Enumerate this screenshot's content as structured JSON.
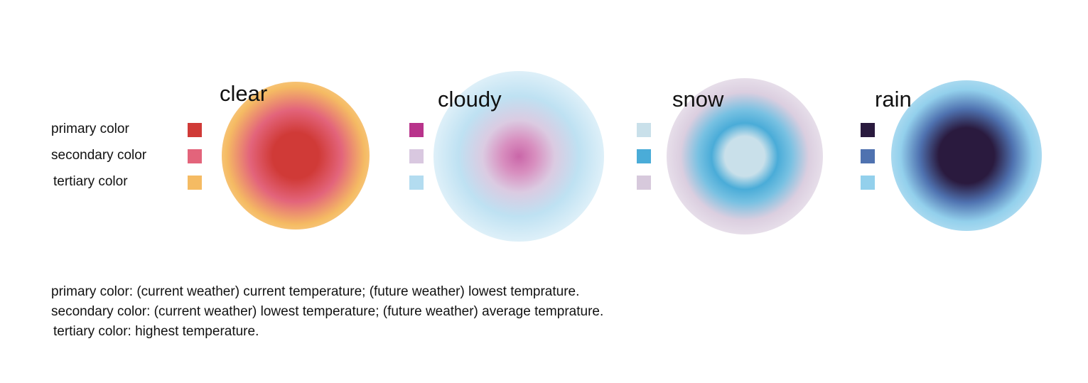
{
  "row_labels": {
    "primary": "primary color",
    "secondary": "secondary color",
    "tertiary": "tertiary color"
  },
  "weather_types": [
    {
      "name": "clear",
      "colors": {
        "primary": "#d03a37",
        "secondary": "#e3647b",
        "tertiary": "#f5bb63"
      }
    },
    {
      "name": "cloudy",
      "colors": {
        "primary": "#b8338b",
        "secondary": "#d9c8e0",
        "tertiary": "#b3dcf0"
      }
    },
    {
      "name": "snow",
      "colors": {
        "primary": "#c9e0ea",
        "secondary": "#4aacd8",
        "tertiary": "#d7c9dc"
      }
    },
    {
      "name": "rain",
      "colors": {
        "primary": "#2a1a3e",
        "secondary": "#4f72b0",
        "tertiary": "#93d0ec"
      }
    }
  ],
  "notes": [
    "primary color: (current weather) current temperature; (future weather) lowest temprature.",
    "secondary color: (current weather) lowest temperature; (future weather) average temprature.",
    "tertiary color: highest temperature."
  ]
}
